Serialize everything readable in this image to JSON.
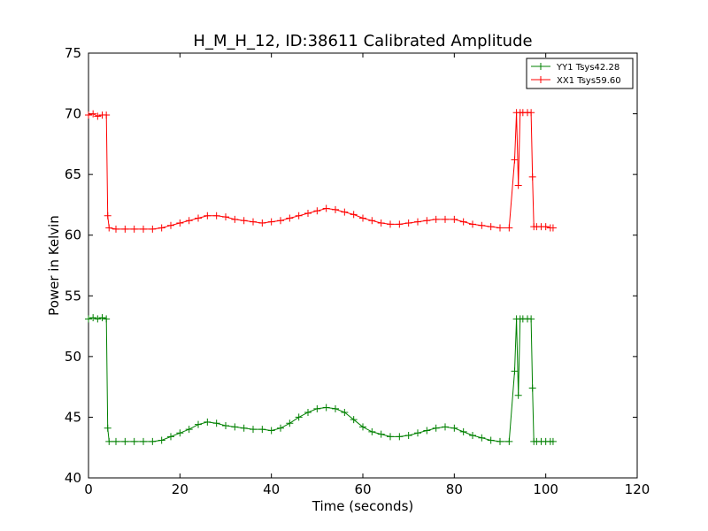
{
  "chart_data": {
    "type": "line",
    "title": "H_M_H_12, ID:38611 Calibrated Amplitude",
    "xlabel": "Time (seconds)",
    "ylabel": "Power in Kelvin",
    "xlim": [
      0,
      120
    ],
    "ylim": [
      40,
      75
    ],
    "xticks": [
      0,
      20,
      40,
      60,
      80,
      100,
      120
    ],
    "yticks": [
      40,
      45,
      50,
      55,
      60,
      65,
      70,
      75
    ],
    "grid": false,
    "legend_position": "top-right",
    "marker": "+",
    "series": [
      {
        "name": "YY1 Tsys42.28",
        "color": "#008000",
        "x": [
          0,
          1,
          2,
          3,
          3.9,
          4.2,
          4.5,
          6,
          8,
          10,
          12,
          14,
          16,
          18,
          20,
          22,
          24,
          26,
          28,
          30,
          32,
          34,
          36,
          38,
          40,
          42,
          44,
          46,
          48,
          50,
          52,
          54,
          56,
          58,
          60,
          62,
          64,
          66,
          68,
          70,
          72,
          74,
          76,
          78,
          80,
          82,
          84,
          86,
          88,
          90,
          92,
          93.2,
          93.6,
          94.0,
          94.4,
          95,
          96,
          96.8,
          97.1,
          97.4,
          98,
          99,
          100,
          101,
          101.6
        ],
        "y": [
          53.1,
          53.2,
          53.1,
          53.2,
          53.1,
          44.1,
          43.0,
          43.0,
          43.0,
          43.0,
          43.0,
          43.0,
          43.1,
          43.4,
          43.7,
          44.0,
          44.4,
          44.6,
          44.5,
          44.3,
          44.2,
          44.1,
          44.0,
          44.0,
          43.9,
          44.1,
          44.5,
          45.0,
          45.4,
          45.7,
          45.8,
          45.7,
          45.4,
          44.8,
          44.2,
          43.8,
          43.6,
          43.4,
          43.4,
          43.5,
          43.7,
          43.9,
          44.1,
          44.2,
          44.1,
          43.8,
          43.5,
          43.3,
          43.1,
          43.0,
          43.0,
          48.8,
          53.1,
          46.8,
          53.1,
          53.1,
          53.1,
          53.1,
          47.4,
          43.0,
          43.0,
          43.0,
          43.0,
          43.0,
          43.0
        ]
      },
      {
        "name": "XX1 Tsys59.60",
        "color": "#ff0000",
        "x": [
          0,
          1,
          2,
          3,
          3.9,
          4.2,
          4.5,
          6,
          8,
          10,
          12,
          14,
          16,
          18,
          20,
          22,
          24,
          26,
          28,
          30,
          32,
          34,
          36,
          38,
          40,
          42,
          44,
          46,
          48,
          50,
          52,
          54,
          56,
          58,
          60,
          62,
          64,
          66,
          68,
          70,
          72,
          74,
          76,
          78,
          80,
          82,
          84,
          86,
          88,
          90,
          92,
          93.2,
          93.6,
          94.0,
          94.4,
          95,
          96,
          96.8,
          97.1,
          97.4,
          98,
          99,
          100,
          101,
          101.6
        ],
        "y": [
          69.9,
          70.0,
          69.8,
          69.9,
          69.9,
          61.6,
          60.6,
          60.5,
          60.5,
          60.5,
          60.5,
          60.5,
          60.6,
          60.8,
          61.0,
          61.2,
          61.4,
          61.6,
          61.6,
          61.5,
          61.3,
          61.2,
          61.1,
          61.0,
          61.1,
          61.2,
          61.4,
          61.6,
          61.8,
          62.0,
          62.2,
          62.1,
          61.9,
          61.7,
          61.4,
          61.2,
          61.0,
          60.9,
          60.9,
          61.0,
          61.1,
          61.2,
          61.3,
          61.3,
          61.3,
          61.1,
          60.9,
          60.8,
          60.7,
          60.6,
          60.6,
          66.2,
          70.1,
          64.1,
          70.1,
          70.1,
          70.1,
          70.1,
          64.8,
          60.7,
          60.7,
          60.7,
          60.7,
          60.6,
          60.6
        ]
      }
    ]
  }
}
